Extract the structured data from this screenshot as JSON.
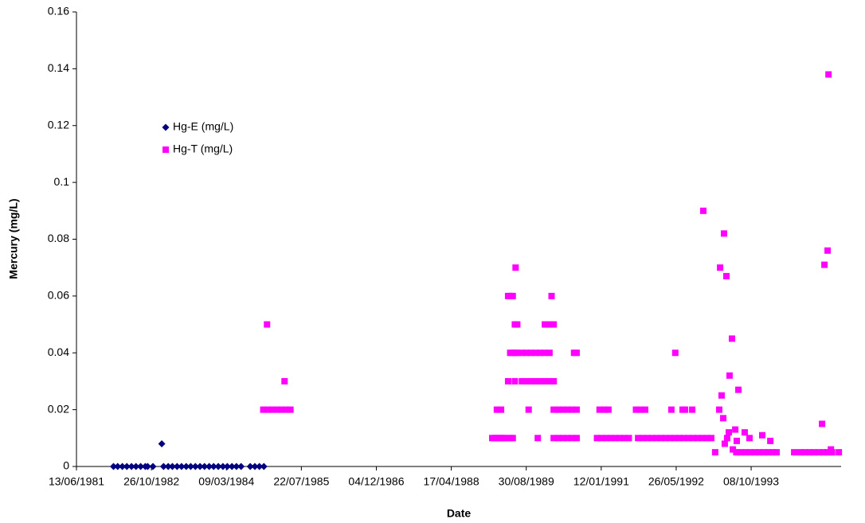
{
  "chart_data": {
    "type": "scatter",
    "x_label": "Date",
    "y_label": "Mercury (mg/L)",
    "xlim": [
      "13/06/1981",
      "31/05/1995"
    ],
    "xticks": [
      "13/06/1981",
      "26/10/1982",
      "09/03/1984",
      "22/07/1985",
      "04/12/1986",
      "17/04/1988",
      "30/08/1989",
      "12/01/1991",
      "26/05/1992",
      "08/10/1993"
    ],
    "ylim": [
      0,
      0.16
    ],
    "yticks": [
      0,
      0.02,
      0.04,
      0.06,
      0.08,
      0.1,
      0.12,
      0.14,
      0.16
    ],
    "grid": false,
    "legend": "left",
    "series": [
      {
        "name": "Hg-E (mg/L)",
        "color": "#000080",
        "marker": "diamond",
        "x": [
          "15/02/1982",
          "15/03/1982",
          "15/04/1982",
          "15/05/1982",
          "15/06/1982",
          "15/07/1982",
          "15/08/1982",
          "15/09/1982",
          "01/10/1982",
          "05/11/1982",
          "03/01/1983",
          "15/01/1983",
          "15/02/1983",
          "15/03/1983",
          "15/04/1983",
          "15/05/1983",
          "15/06/1983",
          "15/07/1983",
          "15/08/1983",
          "15/09/1983",
          "15/10/1983",
          "15/11/1983",
          "15/12/1983",
          "15/01/1984",
          "15/02/1984",
          "15/03/1984",
          "15/04/1984",
          "15/05/1984",
          "15/06/1984",
          "15/08/1984",
          "15/09/1984",
          "15/10/1984",
          "14/11/1984"
        ],
        "values": [
          0,
          0,
          0,
          0,
          0,
          0,
          0,
          0,
          0,
          0,
          0.008,
          0,
          0,
          0,
          0,
          0,
          0,
          0,
          0,
          0,
          0,
          0,
          0,
          0,
          0,
          0,
          0,
          0,
          0,
          0,
          0,
          0,
          0
        ]
      },
      {
        "name": "Hg-T (mg/L)",
        "color": "#ff00ff",
        "marker": "square",
        "x": [
          "10/11/1984",
          "10/12/1984",
          "10/01/1985",
          "10/02/1985",
          "10/03/1985",
          "10/04/1985",
          "10/05/1985",
          "05/12/1984",
          "01/04/1985",
          "15/01/1989",
          "01/02/1989",
          "15/02/1989",
          "01/03/1989",
          "15/03/1989",
          "01/04/1989",
          "15/04/1989",
          "15/05/1989",
          "01/06/1989",
          "15/02/1989",
          "15/03/1989",
          "01/05/1989",
          "15/05/1989",
          "01/06/1989",
          "20/06/1989",
          "15/06/1989",
          "01/07/1989",
          "15/05/1989",
          "01/06/1989",
          "15/06/1989",
          "01/07/1989",
          "01/08/1989",
          "01/09/1989",
          "01/10/1989",
          "01/11/1989",
          "01/12/1989",
          "01/01/1990",
          "01/02/1990",
          "01/05/1989",
          "15/06/1989",
          "01/08/1989",
          "01/09/1989",
          "01/10/1989",
          "01/11/1989",
          "01/12/1989",
          "01/01/1990",
          "01/02/1990",
          "01/03/1990",
          "15/09/1989",
          "15/11/1989",
          "15/02/1990",
          "01/01/1990",
          "01/02/1990",
          "01/03/1990",
          "01/03/1990",
          "01/04/1990",
          "01/05/1990",
          "01/06/1990",
          "01/07/1990",
          "01/08/1990",
          "01/03/1990",
          "01/04/1990",
          "01/05/1990",
          "01/06/1990",
          "01/07/1990",
          "01/08/1990",
          "15/07/1990",
          "01/08/1990",
          "15/12/1990",
          "15/01/1991",
          "15/02/1991",
          "15/03/1991",
          "15/04/1991",
          "15/05/1991",
          "15/06/1991",
          "15/07/1991",
          "15/09/1991",
          "15/10/1991",
          "15/11/1991",
          "15/12/1991",
          "15/01/1992",
          "15/02/1992",
          "15/03/1992",
          "15/04/1992",
          "15/05/1992",
          "15/06/1992",
          "15/07/1992",
          "15/08/1992",
          "15/09/1992",
          "15/10/1992",
          "15/11/1992",
          "15/12/1992",
          "15/01/1993",
          "01/01/1991",
          "01/02/1991",
          "01/03/1991",
          "01/09/1991",
          "01/10/1991",
          "01/11/1991",
          "20/05/1992",
          "24/04/1992",
          "08/07/1992",
          "24/07/1992",
          "10/09/1992",
          "23/11/1992",
          "10/02/1993",
          "09/03/1993",
          "15/03/1993",
          "25/03/1993",
          "05/04/1993",
          "10/04/1993",
          "15/04/1993",
          "26/04/1993",
          "01/05/1993",
          "12/05/1993",
          "17/05/1993",
          "02/06/1993",
          "08/06/1993",
          "24/06/1993",
          "04/07/1993",
          "15/07/1993",
          "26/08/1993",
          "27/09/1993",
          "21/12/1993",
          "13/02/1994",
          "01/07/1993",
          "01/08/1993",
          "01/09/1993",
          "01/10/1993",
          "01/11/1993",
          "01/12/1993",
          "01/01/1994",
          "01/02/1994",
          "01/03/1994",
          "27/03/1994",
          "22/07/1994",
          "01/09/1994",
          "01/10/1994",
          "01/11/1994",
          "01/12/1994",
          "01/01/1995",
          "01/02/1995",
          "01/03/1995",
          "01/04/1995",
          "16/05/1995",
          "24/01/1995",
          "09/02/1995",
          "02/03/1995",
          "08/03/1995",
          "24/03/1995"
        ],
        "values": [
          0.02,
          0.02,
          0.02,
          0.02,
          0.02,
          0.02,
          0.02,
          0.05,
          0.03,
          0.01,
          0.01,
          0.01,
          0.01,
          0.01,
          0.01,
          0.01,
          0.01,
          0.01,
          0.02,
          0.02,
          0.06,
          0.06,
          0.06,
          0.07,
          0.05,
          0.05,
          0.04,
          0.04,
          0.04,
          0.04,
          0.04,
          0.04,
          0.04,
          0.04,
          0.04,
          0.04,
          0.04,
          0.03,
          0.03,
          0.03,
          0.03,
          0.03,
          0.03,
          0.03,
          0.03,
          0.03,
          0.03,
          0.02,
          0.01,
          0.06,
          0.05,
          0.05,
          0.05,
          0.02,
          0.02,
          0.02,
          0.02,
          0.02,
          0.02,
          0.01,
          0.01,
          0.01,
          0.01,
          0.01,
          0.01,
          0.04,
          0.04,
          0.01,
          0.01,
          0.01,
          0.01,
          0.01,
          0.01,
          0.01,
          0.01,
          0.01,
          0.01,
          0.01,
          0.01,
          0.01,
          0.01,
          0.01,
          0.01,
          0.01,
          0.01,
          0.01,
          0.01,
          0.01,
          0.01,
          0.01,
          0.01,
          0.01,
          0.02,
          0.02,
          0.02,
          0.02,
          0.02,
          0.02,
          0.04,
          0.02,
          0.02,
          0.02,
          0.02,
          0.09,
          0.005,
          0.02,
          0.07,
          0.025,
          0.017,
          0.082,
          0.008,
          0.067,
          0.01,
          0.012,
          0.032,
          0.045,
          0.006,
          0.013,
          0.009,
          0.027,
          0.012,
          0.01,
          0.011,
          0.009,
          0.005,
          0.005,
          0.005,
          0.005,
          0.005,
          0.005,
          0.005,
          0.005,
          0.005,
          0.005,
          0.005,
          0.005,
          0.005,
          0.005,
          0.005,
          0.005,
          0.005,
          0.005,
          0.005,
          0.005,
          0.015,
          0.071,
          0.076,
          0.138,
          0.006
        ]
      }
    ]
  }
}
